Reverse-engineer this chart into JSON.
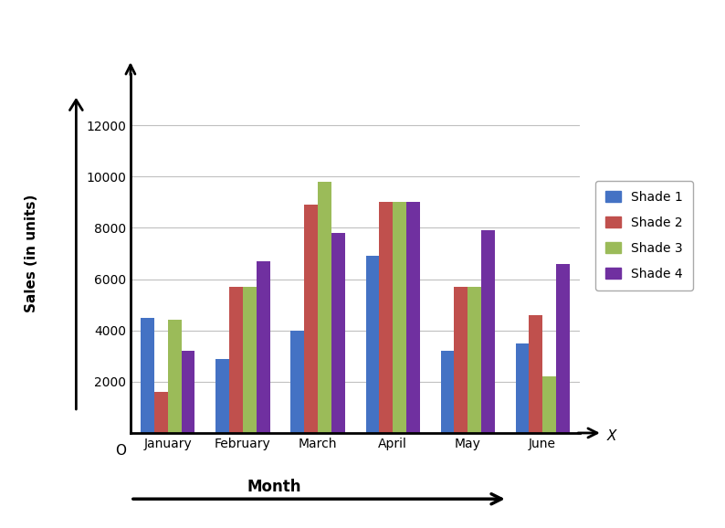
{
  "categories": [
    "January",
    "February",
    "March",
    "April",
    "May",
    "June"
  ],
  "series": {
    "Shade 1": [
      4500,
      2900,
      4000,
      6900,
      3200,
      3500
    ],
    "Shade 2": [
      1600,
      5700,
      8900,
      9000,
      5700,
      4600
    ],
    "Shade 3": [
      4400,
      5700,
      9800,
      9000,
      5700,
      2200
    ],
    "Shade 4": [
      3200,
      6700,
      7800,
      9000,
      7900,
      6600
    ]
  },
  "colors": {
    "Shade 1": "#4472C4",
    "Shade 2": "#C0504D",
    "Shade 3": "#9BBB59",
    "Shade 4": "#7030A0"
  },
  "ylabel": "Sales (in units)",
  "xlabel": "Month",
  "ylim": [
    0,
    14000
  ],
  "yticks": [
    0,
    2000,
    4000,
    6000,
    8000,
    10000,
    12000
  ],
  "background_color": "#ffffff",
  "grid_color": "#c0c0c0"
}
